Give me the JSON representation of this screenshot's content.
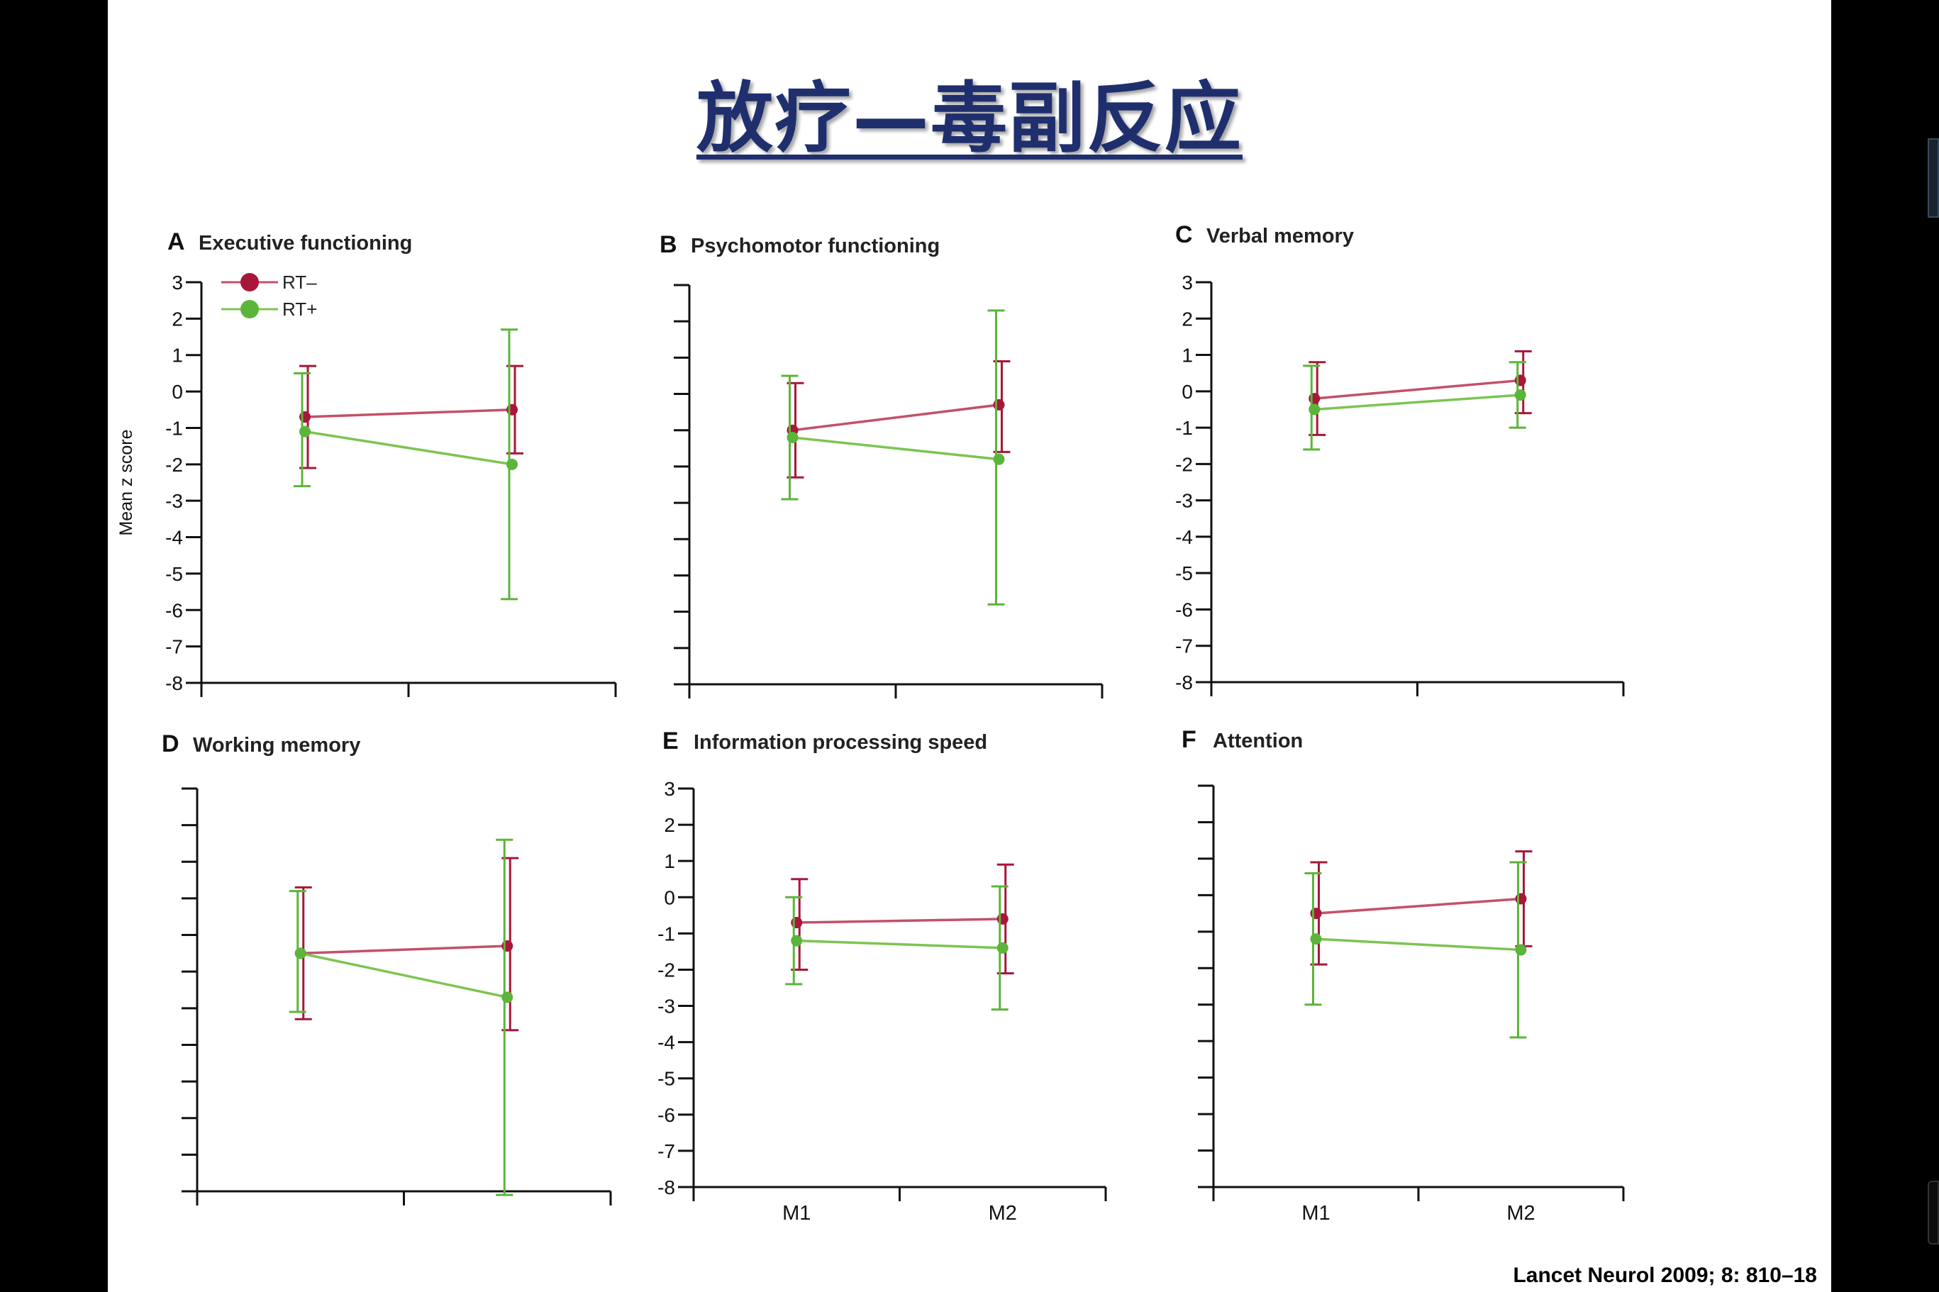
{
  "slide": {
    "title": "放疗—毒副反应",
    "citation": "Lancet Neurol 2009; 8: 810–18"
  },
  "colors": {
    "rt_minus": "#a8173a",
    "rt_plus": "#5bb53a",
    "rt_minus_line": "#c4506a",
    "rt_plus_line": "#7cc452"
  },
  "chart_data": [
    {
      "panel": "A",
      "title": "Executive functioning",
      "type": "line",
      "ylabel": "Mean z score",
      "ylim": [
        -8,
        3
      ],
      "y_ticks": [
        "3",
        "2",
        "1",
        "0",
        "-1",
        "-2",
        "-3",
        "-4",
        "-5",
        "-6",
        "-7",
        "-8"
      ],
      "x_labels": [],
      "legend": [
        "RT–",
        "RT+"
      ],
      "series": [
        {
          "name": "RT–",
          "values": [
            -0.7,
            -0.5
          ],
          "err_low": [
            -2.1,
            -1.7
          ],
          "err_high": [
            0.7,
            0.7
          ]
        },
        {
          "name": "RT+",
          "values": [
            -1.1,
            -2.0
          ],
          "err_low": [
            -2.6,
            -5.7
          ],
          "err_high": [
            0.5,
            1.7
          ]
        }
      ]
    },
    {
      "panel": "B",
      "title": "Psychomotor functioning",
      "type": "line",
      "ylim": [
        -8,
        3
      ],
      "y_ticks": [],
      "x_labels": [],
      "series": [
        {
          "name": "RT–",
          "values": [
            -1.0,
            -0.3
          ],
          "err_low": [
            -2.3,
            -1.6
          ],
          "err_high": [
            0.3,
            0.9
          ]
        },
        {
          "name": "RT+",
          "values": [
            -1.2,
            -1.8
          ],
          "err_low": [
            -2.9,
            -5.8
          ],
          "err_high": [
            0.5,
            2.3
          ]
        }
      ]
    },
    {
      "panel": "C",
      "title": "Verbal memory",
      "type": "line",
      "ylim": [
        -8,
        3
      ],
      "y_ticks": [
        "3",
        "2",
        "1",
        "0",
        "-1",
        "-2",
        "-3",
        "-4",
        "-5",
        "-6",
        "-7",
        "-8"
      ],
      "x_labels": [],
      "series": [
        {
          "name": "RT–",
          "values": [
            -0.2,
            0.3
          ],
          "err_low": [
            -1.2,
            -0.6
          ],
          "err_high": [
            0.8,
            1.1
          ]
        },
        {
          "name": "RT+",
          "values": [
            -0.5,
            -0.1
          ],
          "err_low": [
            -1.6,
            -1.0
          ],
          "err_high": [
            0.7,
            0.8
          ]
        }
      ]
    },
    {
      "panel": "D",
      "title": "Working memory",
      "type": "line",
      "ylim": [
        -8,
        3
      ],
      "y_ticks": [],
      "x_labels": [],
      "series": [
        {
          "name": "RT–",
          "values": [
            -1.5,
            -1.3
          ],
          "err_low": [
            -3.3,
            -3.6
          ],
          "err_high": [
            0.3,
            1.1
          ]
        },
        {
          "name": "RT+",
          "values": [
            -1.5,
            -2.7
          ],
          "err_low": [
            -3.1,
            -8.1
          ],
          "err_high": [
            0.2,
            1.6
          ]
        }
      ]
    },
    {
      "panel": "E",
      "title": "Information processing speed",
      "type": "line",
      "ylim": [
        -8,
        3
      ],
      "y_ticks": [
        "3",
        "2",
        "1",
        "0",
        "-1",
        "-2",
        "-3",
        "-4",
        "-5",
        "-6",
        "-7",
        "-8"
      ],
      "x_labels": [
        "M1",
        "M2"
      ],
      "series": [
        {
          "name": "RT–",
          "values": [
            -0.7,
            -0.6
          ],
          "err_low": [
            -2.0,
            -2.1
          ],
          "err_high": [
            0.5,
            0.9
          ]
        },
        {
          "name": "RT+",
          "values": [
            -1.2,
            -1.4
          ],
          "err_low": [
            -2.4,
            -3.1
          ],
          "err_high": [
            0.0,
            0.3
          ]
        }
      ]
    },
    {
      "panel": "F",
      "title": "Attention",
      "type": "line",
      "ylim": [
        -8,
        3
      ],
      "y_ticks": [],
      "x_labels": [
        "M1",
        "M2"
      ],
      "series": [
        {
          "name": "RT–",
          "values": [
            -0.5,
            -0.1
          ],
          "err_low": [
            -1.9,
            -1.4
          ],
          "err_high": [
            0.9,
            1.2
          ]
        },
        {
          "name": "RT+",
          "values": [
            -1.2,
            -1.5
          ],
          "err_low": [
            -3.0,
            -3.9
          ],
          "err_high": [
            0.6,
            0.9
          ]
        }
      ]
    }
  ]
}
